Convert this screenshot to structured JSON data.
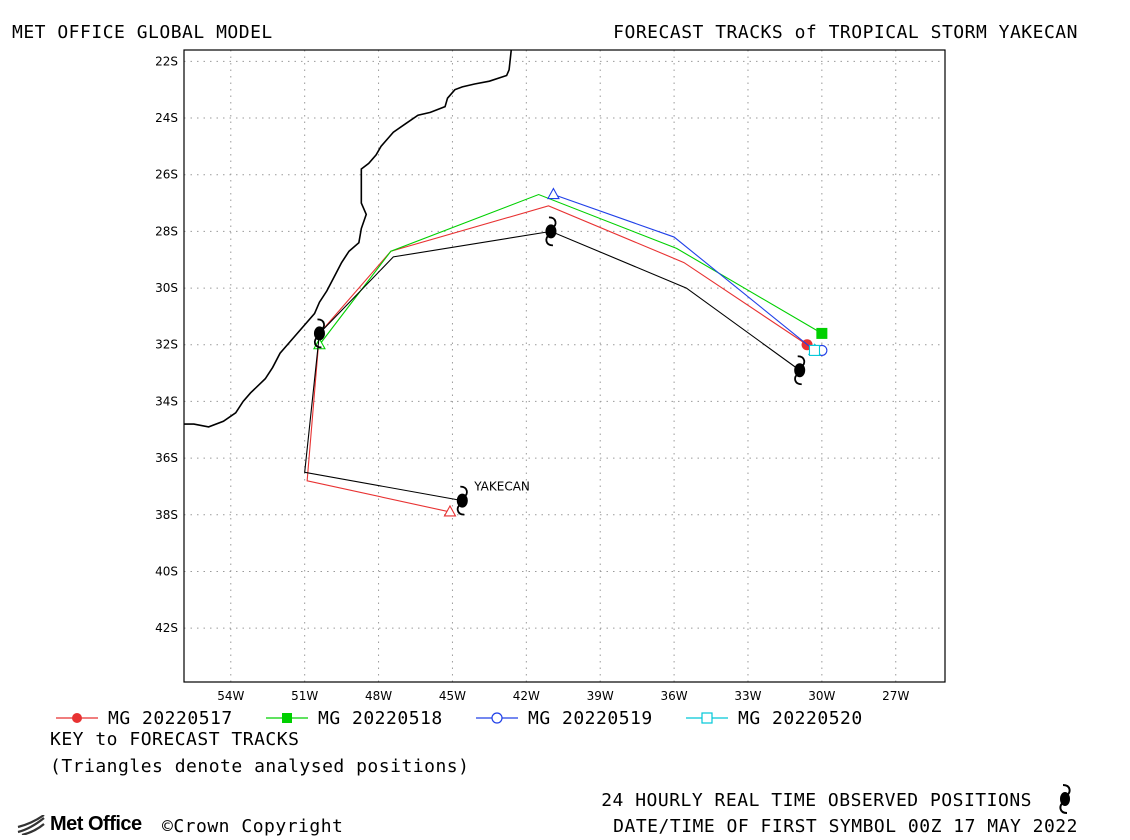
{
  "header": {
    "left_title": "MET OFFICE GLOBAL MODEL",
    "right_title": "FORECAST TRACKS of TROPICAL STORM YAKECAN"
  },
  "chart_data": {
    "type": "line",
    "title": "FORECAST TRACKS of TROPICAL STORM YAKECAN",
    "x_ticks": [
      "54W",
      "51W",
      "48W",
      "45W",
      "42W",
      "39W",
      "36W",
      "33W",
      "30W",
      "27W"
    ],
    "y_ticks": [
      "22S",
      "24S",
      "26S",
      "28S",
      "30S",
      "32S",
      "34S",
      "36S",
      "38S",
      "40S",
      "42S"
    ],
    "xlim": [
      -55.9,
      -25.0
    ],
    "ylim": [
      -43.9,
      -21.6
    ],
    "grid": true,
    "storm_label": "YAKECAN",
    "series": [
      {
        "name": "MG 20220517",
        "color": "#e83232",
        "marker": "filled-circle",
        "analysed_start": [
          -45.1,
          -37.9
        ],
        "points": [
          [
            -45.1,
            -37.9
          ],
          [
            -50.9,
            -36.8
          ],
          [
            -50.4,
            -31.6
          ],
          [
            -47.5,
            -28.7
          ],
          [
            -41.1,
            -27.1
          ],
          [
            -35.6,
            -29.1
          ],
          [
            -30.6,
            -32.0
          ]
        ],
        "final_marker": [
          -30.6,
          -32.0
        ]
      },
      {
        "name": "MG 20220518",
        "color": "#00d000",
        "marker": "filled-square",
        "analysed_start": [
          -50.4,
          -32.0
        ],
        "points": [
          [
            -50.4,
            -32.0
          ],
          [
            -47.5,
            -28.7
          ],
          [
            -41.5,
            -26.7
          ],
          [
            -35.9,
            -28.6
          ],
          [
            -30.0,
            -31.6
          ]
        ],
        "final_marker": [
          -30.0,
          -31.6
        ]
      },
      {
        "name": "MG 20220519",
        "color": "#2040e8",
        "marker": "open-circle",
        "analysed_start": [
          -40.9,
          -26.7
        ],
        "points": [
          [
            -40.9,
            -26.7
          ],
          [
            -36.0,
            -28.2
          ],
          [
            -30.3,
            -32.2
          ],
          [
            -30.0,
            -32.2
          ]
        ],
        "final_marker": [
          -30.0,
          -32.2
        ]
      },
      {
        "name": "MG 20220520",
        "color": "#00c8d8",
        "marker": "open-square",
        "analysed_start": [
          -30.3,
          -32.2
        ],
        "points": [
          [
            -30.3,
            -32.2
          ]
        ],
        "final_marker": [
          -30.3,
          -32.2
        ]
      }
    ],
    "observed": {
      "name": "24 HOURLY REAL TIME OBSERVED POSITIONS",
      "color": "#000000",
      "points": [
        [
          -44.6,
          -37.5
        ],
        [
          -51.0,
          -36.5
        ],
        [
          -50.4,
          -31.6
        ],
        [
          -47.4,
          -28.9
        ],
        [
          -41.0,
          -28.0
        ],
        [
          -35.5,
          -30.0
        ],
        [
          -30.9,
          -32.9
        ]
      ]
    }
  },
  "legend": {
    "items": [
      {
        "label": "MG 20220517",
        "color": "#e83232",
        "marker": "filled-circle"
      },
      {
        "label": "MG 20220518",
        "color": "#00d000",
        "marker": "filled-square"
      },
      {
        "label": "MG 20220519",
        "color": "#2040e8",
        "marker": "open-circle"
      },
      {
        "label": "MG 20220520",
        "color": "#00c8d8",
        "marker": "open-square"
      }
    ]
  },
  "footer": {
    "key_line1": "KEY to FORECAST TRACKS",
    "key_line2": "(Triangles denote analysed positions)",
    "observed_label": "24 HOURLY REAL TIME OBSERVED POSITIONS",
    "datetime_label": "DATE/TIME OF FIRST SYMBOL 00Z 17 MAY 2022",
    "logo_text": "Met Office",
    "copyright": "©Crown Copyright"
  }
}
